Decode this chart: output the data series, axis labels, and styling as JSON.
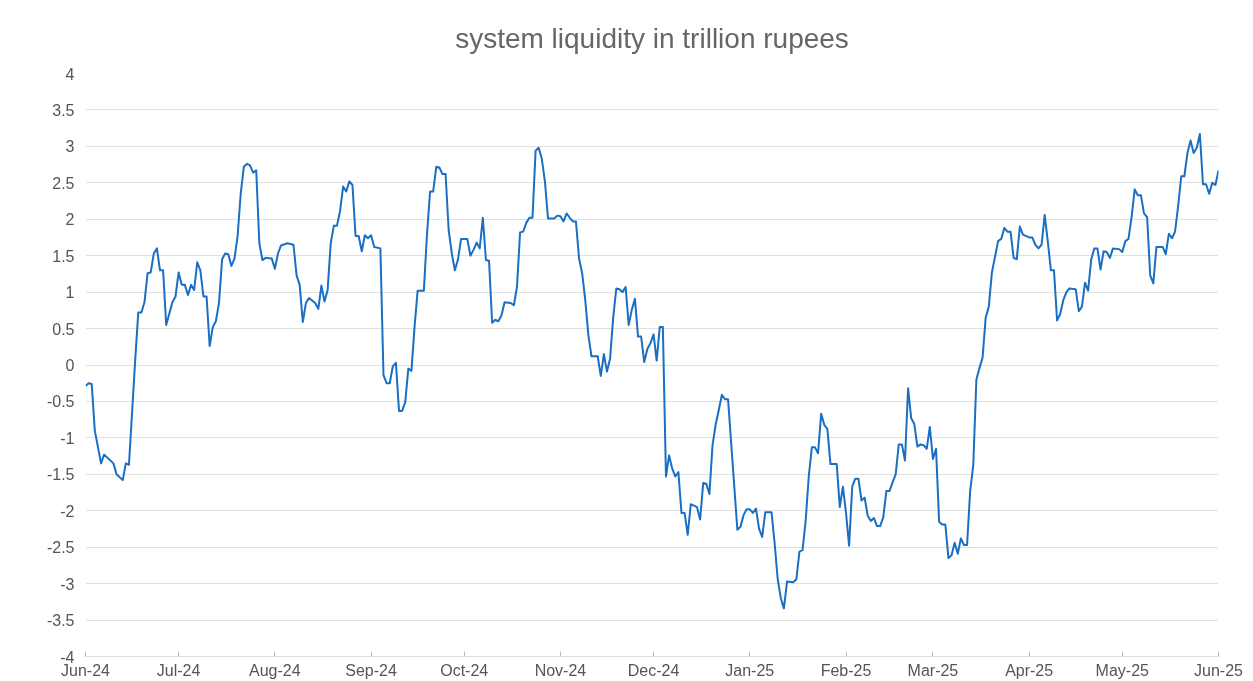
{
  "chart_data": {
    "type": "line",
    "title": "system liquidity in trillion rupees",
    "x": [
      "2024-06-01",
      "2024-06-02",
      "2024-06-03",
      "2024-06-04",
      "2024-06-06",
      "2024-06-07",
      "2024-06-10",
      "2024-06-11",
      "2024-06-13",
      "2024-06-14",
      "2024-06-15",
      "2024-06-17",
      "2024-06-18",
      "2024-06-19",
      "2024-06-20",
      "2024-06-21",
      "2024-06-22",
      "2024-06-23",
      "2024-06-24",
      "2024-06-25",
      "2024-06-26",
      "2024-06-27",
      "2024-06-29",
      "2024-06-30",
      "2024-07-01",
      "2024-07-02",
      "2024-07-03",
      "2024-07-04",
      "2024-07-05",
      "2024-07-06",
      "2024-07-07",
      "2024-07-08",
      "2024-07-09",
      "2024-07-10",
      "2024-07-11",
      "2024-07-12",
      "2024-07-13",
      "2024-07-14",
      "2024-07-15",
      "2024-07-16",
      "2024-07-17",
      "2024-07-18",
      "2024-07-19",
      "2024-07-20",
      "2024-07-21",
      "2024-07-22",
      "2024-07-23",
      "2024-07-24",
      "2024-07-25",
      "2024-07-26",
      "2024-07-27",
      "2024-07-28",
      "2024-07-29",
      "2024-07-31",
      "2024-08-01",
      "2024-08-02",
      "2024-08-03",
      "2024-08-05",
      "2024-08-07",
      "2024-08-08",
      "2024-08-09",
      "2024-08-10",
      "2024-08-11",
      "2024-08-12",
      "2024-08-14",
      "2024-08-15",
      "2024-08-16",
      "2024-08-17",
      "2024-08-18",
      "2024-08-19",
      "2024-08-20",
      "2024-08-21",
      "2024-08-22",
      "2024-08-23",
      "2024-08-24",
      "2024-08-25",
      "2024-08-26",
      "2024-08-27",
      "2024-08-28",
      "2024-08-29",
      "2024-08-30",
      "2024-08-31",
      "2024-09-01",
      "2024-09-02",
      "2024-09-04",
      "2024-09-05",
      "2024-09-06",
      "2024-09-07",
      "2024-09-08",
      "2024-09-09",
      "2024-09-10",
      "2024-09-11",
      "2024-09-12",
      "2024-09-13",
      "2024-09-14",
      "2024-09-15",
      "2024-09-16",
      "2024-09-18",
      "2024-09-19",
      "2024-09-20",
      "2024-09-21",
      "2024-09-22",
      "2024-09-23",
      "2024-09-24",
      "2024-09-25",
      "2024-09-26",
      "2024-09-27",
      "2024-09-28",
      "2024-09-29",
      "2024-09-30",
      "2024-10-02",
      "2024-10-03",
      "2024-10-04",
      "2024-10-05",
      "2024-10-06",
      "2024-10-07",
      "2024-10-08",
      "2024-10-09",
      "2024-10-10",
      "2024-10-11",
      "2024-10-12",
      "2024-10-13",
      "2024-10-14",
      "2024-10-16",
      "2024-10-17",
      "2024-10-18",
      "2024-10-19",
      "2024-10-20",
      "2024-10-21",
      "2024-10-22",
      "2024-10-23",
      "2024-10-24",
      "2024-10-25",
      "2024-10-26",
      "2024-10-27",
      "2024-10-28",
      "2024-10-30",
      "2024-10-31",
      "2024-11-01",
      "2024-11-02",
      "2024-11-03",
      "2024-11-04",
      "2024-11-05",
      "2024-11-06",
      "2024-11-07",
      "2024-11-08",
      "2024-11-09",
      "2024-11-10",
      "2024-11-11",
      "2024-11-13",
      "2024-11-14",
      "2024-11-15",
      "2024-11-16",
      "2024-11-17",
      "2024-11-18",
      "2024-11-19",
      "2024-11-20",
      "2024-11-21",
      "2024-11-22",
      "2024-11-23",
      "2024-11-24",
      "2024-11-25",
      "2024-11-26",
      "2024-11-27",
      "2024-11-28",
      "2024-11-29",
      "2024-11-30",
      "2024-12-01",
      "2024-12-02",
      "2024-12-03",
      "2024-12-04",
      "2024-12-05",
      "2024-12-06",
      "2024-12-07",
      "2024-12-08",
      "2024-12-09",
      "2024-12-10",
      "2024-12-11",
      "2024-12-12",
      "2024-12-13",
      "2024-12-15",
      "2024-12-16",
      "2024-12-17",
      "2024-12-18",
      "2024-12-19",
      "2024-12-20",
      "2024-12-21",
      "2024-12-22",
      "2024-12-23",
      "2024-12-24",
      "2024-12-25",
      "2024-12-28",
      "2024-12-29",
      "2024-12-30",
      "2024-12-31",
      "2025-01-01",
      "2025-01-02",
      "2025-01-03",
      "2025-01-04",
      "2025-01-05",
      "2025-01-06",
      "2025-01-08",
      "2025-01-09",
      "2025-01-10",
      "2025-01-11",
      "2025-01-12",
      "2025-01-13",
      "2025-01-15",
      "2025-01-16",
      "2025-01-17",
      "2025-01-18",
      "2025-01-19",
      "2025-01-20",
      "2025-01-21",
      "2025-01-22",
      "2025-01-23",
      "2025-01-24",
      "2025-01-25",
      "2025-01-26",
      "2025-01-27",
      "2025-01-29",
      "2025-01-30",
      "2025-01-31",
      "2025-02-01",
      "2025-02-02",
      "2025-02-03",
      "2025-02-04",
      "2025-02-05",
      "2025-02-06",
      "2025-02-07",
      "2025-02-08",
      "2025-02-09",
      "2025-02-10",
      "2025-02-11",
      "2025-02-12",
      "2025-02-13",
      "2025-02-14",
      "2025-02-15",
      "2025-02-16",
      "2025-02-17",
      "2025-02-18",
      "2025-02-19",
      "2025-02-20",
      "2025-02-21",
      "2025-02-22",
      "2025-02-23",
      "2025-02-24",
      "2025-02-25",
      "2025-02-26",
      "2025-02-27",
      "2025-02-28",
      "2025-03-01",
      "2025-03-02",
      "2025-03-03",
      "2025-03-04",
      "2025-03-05",
      "2025-03-06",
      "2025-03-07",
      "2025-03-08",
      "2025-03-09",
      "2025-03-10",
      "2025-03-11",
      "2025-03-12",
      "2025-03-13",
      "2025-03-14",
      "2025-03-15",
      "2025-03-16",
      "2025-03-17",
      "2025-03-18",
      "2025-03-19",
      "2025-03-20",
      "2025-03-22",
      "2025-03-23",
      "2025-03-24",
      "2025-03-25",
      "2025-03-26",
      "2025-03-27",
      "2025-03-28",
      "2025-03-29",
      "2025-03-30",
      "2025-04-01",
      "2025-04-02",
      "2025-04-03",
      "2025-04-04",
      "2025-04-05",
      "2025-04-06",
      "2025-04-07",
      "2025-04-08",
      "2025-04-09",
      "2025-04-10",
      "2025-04-11",
      "2025-04-12",
      "2025-04-13",
      "2025-04-14",
      "2025-04-16",
      "2025-04-17",
      "2025-04-18",
      "2025-04-19",
      "2025-04-20",
      "2025-04-21",
      "2025-04-22",
      "2025-04-23",
      "2025-04-24",
      "2025-04-25",
      "2025-04-26",
      "2025-04-27",
      "2025-04-28",
      "2025-04-30",
      "2025-05-01",
      "2025-05-02",
      "2025-05-03",
      "2025-05-04",
      "2025-05-05",
      "2025-05-06",
      "2025-05-07",
      "2025-05-08",
      "2025-05-09",
      "2025-05-10",
      "2025-05-11",
      "2025-05-12",
      "2025-05-14",
      "2025-05-15",
      "2025-05-16",
      "2025-05-17",
      "2025-05-18",
      "2025-05-19",
      "2025-05-20",
      "2025-05-21",
      "2025-05-22",
      "2025-05-23",
      "2025-05-24",
      "2025-05-25",
      "2025-05-26",
      "2025-05-27",
      "2025-05-28",
      "2025-05-29",
      "2025-05-30",
      "2025-05-31",
      "2025-06-01"
    ],
    "series": [
      {
        "color": "#1a6fc4",
        "values": [
          -0.29,
          -0.25,
          -0.26,
          -0.9,
          -1.35,
          -1.23,
          -1.35,
          -1.5,
          -1.58,
          -1.35,
          -1.37,
          0.06,
          0.72,
          0.72,
          0.86,
          1.26,
          1.27,
          1.53,
          1.6,
          1.3,
          1.3,
          0.55,
          0.86,
          0.94,
          1.27,
          1.1,
          1.1,
          0.96,
          1.1,
          1.03,
          1.41,
          1.3,
          0.94,
          0.94,
          0.26,
          0.52,
          0.6,
          0.85,
          1.45,
          1.53,
          1.52,
          1.36,
          1.46,
          1.77,
          2.35,
          2.72,
          2.76,
          2.74,
          2.64,
          2.67,
          1.67,
          1.44,
          1.47,
          1.46,
          1.32,
          1.53,
          1.64,
          1.67,
          1.65,
          1.23,
          1.1,
          0.59,
          0.85,
          0.92,
          0.85,
          0.77,
          1.09,
          0.87,
          1.03,
          1.67,
          1.91,
          1.91,
          2.11,
          2.45,
          2.38,
          2.52,
          2.47,
          1.77,
          1.77,
          1.56,
          1.78,
          1.74,
          1.78,
          1.62,
          1.6,
          -0.14,
          -0.25,
          -0.25,
          -0.02,
          0.03,
          -0.63,
          -0.63,
          -0.51,
          -0.05,
          -0.08,
          0.52,
          1.02,
          1.02,
          1.78,
          2.38,
          2.38,
          2.72,
          2.71,
          2.62,
          2.62,
          1.85,
          1.53,
          1.3,
          1.45,
          1.73,
          1.73,
          1.5,
          1.58,
          1.68,
          1.6,
          2.02,
          1.44,
          1.43,
          0.58,
          0.62,
          0.6,
          0.68,
          0.86,
          0.85,
          0.82,
          1.07,
          1.82,
          1.83,
          1.95,
          2.02,
          2.02,
          2.94,
          2.98,
          2.83,
          2.52,
          2.01,
          2.01,
          2.05,
          2.04,
          1.97,
          2.08,
          2.02,
          1.97,
          1.97,
          1.46,
          1.26,
          0.89,
          0.41,
          0.12,
          0.12,
          -0.15,
          0.15,
          -0.09,
          0.09,
          0.65,
          1.05,
          1.04,
          1.0,
          1.07,
          0.55,
          0.76,
          0.91,
          0.39,
          0.39,
          0.04,
          0.22,
          0.3,
          0.42,
          0.06,
          0.52,
          0.52,
          -1.53,
          -1.24,
          -1.42,
          -1.53,
          -1.47,
          -2.03,
          -2.03,
          -2.33,
          -1.91,
          -1.95,
          -2.12,
          -1.62,
          -1.63,
          -1.77,
          -1.1,
          -0.82,
          -0.62,
          -0.41,
          -0.47,
          -0.47,
          -2.26,
          -2.22,
          -2.06,
          -1.98,
          -1.98,
          -2.03,
          -1.97,
          -2.25,
          -2.36,
          -2.02,
          -2.02,
          -2.44,
          -2.94,
          -3.2,
          -3.34,
          -2.97,
          -2.98,
          -2.94,
          -2.56,
          -2.54,
          -2.14,
          -1.53,
          -1.13,
          -1.13,
          -1.21,
          -0.67,
          -0.82,
          -0.88,
          -1.36,
          -1.36,
          -1.95,
          -1.67,
          -2.03,
          -2.48,
          -1.67,
          -1.56,
          -1.56,
          -1.86,
          -1.82,
          -2.07,
          -2.14,
          -2.1,
          -2.21,
          -2.21,
          -2.09,
          -1.73,
          -1.73,
          -1.61,
          -1.5,
          -1.09,
          -1.09,
          -1.31,
          -0.32,
          -0.73,
          -0.81,
          -1.12,
          -1.09,
          -1.1,
          -1.15,
          -0.85,
          -1.29,
          -1.15,
          -2.15,
          -2.19,
          -2.19,
          -2.65,
          -2.61,
          -2.44,
          -2.59,
          -2.38,
          -2.47,
          -2.47,
          -1.73,
          -1.37,
          -0.2,
          -0.04,
          0.1,
          0.65,
          0.8,
          1.27,
          1.7,
          1.73,
          1.88,
          1.83,
          1.83,
          1.47,
          1.45,
          1.9,
          1.79,
          1.75,
          1.75,
          1.65,
          1.6,
          1.65,
          2.06,
          1.7,
          1.3,
          1.3,
          0.61,
          0.7,
          0.89,
          1.0,
          1.05,
          1.04,
          0.74,
          0.8,
          1.13,
          1.02,
          1.45,
          1.6,
          1.6,
          1.31,
          1.56,
          1.55,
          1.47,
          1.6,
          1.59,
          1.55,
          1.7,
          1.73,
          2.03,
          2.41,
          2.33,
          2.33,
          2.08,
          2.03,
          1.23,
          1.12,
          1.62,
          1.62,
          1.52,
          1.8,
          1.74,
          1.83,
          2.18,
          2.59,
          2.59,
          2.91,
          3.08,
          2.91,
          2.98,
          3.17,
          2.48,
          2.48,
          2.35,
          2.5,
          2.47,
          2.67
        ]
      }
    ],
    "xlim": [
      "2024-06-01",
      "2025-06-01"
    ],
    "xticks": [
      {
        "value": "2024-06-01",
        "label": "Jun-24"
      },
      {
        "value": "2024-07-01",
        "label": "Jul-24"
      },
      {
        "value": "2024-08-01",
        "label": "Aug-24"
      },
      {
        "value": "2024-09-01",
        "label": "Sep-24"
      },
      {
        "value": "2024-10-01",
        "label": "Oct-24"
      },
      {
        "value": "2024-11-01",
        "label": "Nov-24"
      },
      {
        "value": "2024-12-01",
        "label": "Dec-24"
      },
      {
        "value": "2025-01-01",
        "label": "Jan-25"
      },
      {
        "value": "2025-02-01",
        "label": "Feb-25"
      },
      {
        "value": "2025-03-01",
        "label": "Mar-25"
      },
      {
        "value": "2025-04-01",
        "label": "Apr-25"
      },
      {
        "value": "2025-05-01",
        "label": "May-25"
      },
      {
        "value": "2025-06-01",
        "label": "Jun-25"
      }
    ],
    "ylim": [
      -4,
      4
    ],
    "yticks": [
      -4,
      -3.5,
      -3,
      -2.5,
      -2,
      -1.5,
      -1,
      -0.5,
      0,
      0.5,
      1,
      1.5,
      2,
      2.5,
      3,
      3.5,
      4
    ],
    "grid": "y"
  }
}
